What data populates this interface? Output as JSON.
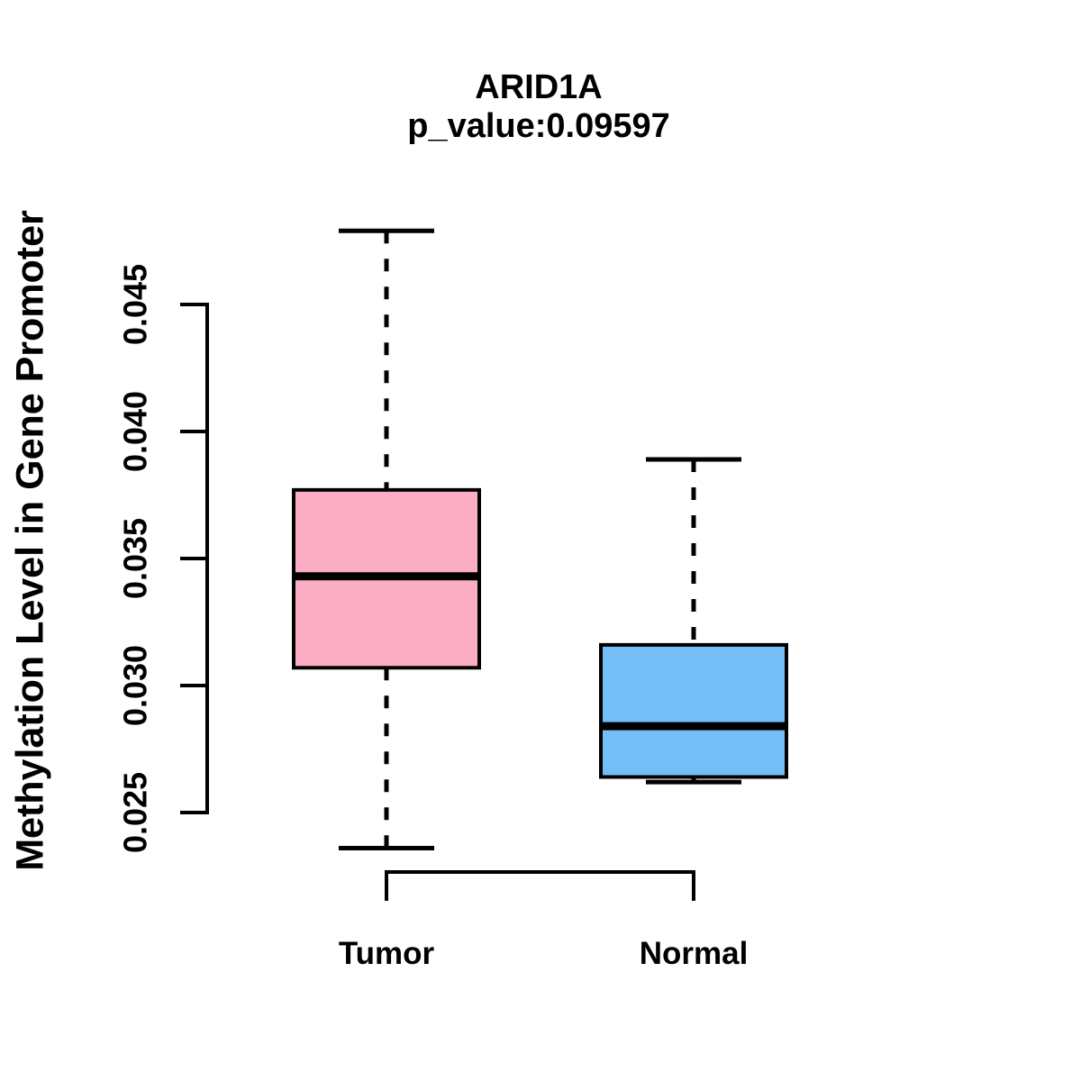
{
  "chart_data": {
    "type": "boxplot",
    "title": "ARID1A",
    "subtitle": "p_value:0.09597",
    "ylabel": "Methylation Level in Gene Promoter",
    "xlabel": "",
    "categories": [
      "Tumor",
      "Normal"
    ],
    "ylim": [
      0.025,
      0.045
    ],
    "yticks": [
      0.025,
      0.03,
      0.035,
      0.04,
      0.045
    ],
    "ytick_labels": [
      "0.025",
      "0.030",
      "0.035",
      "0.040",
      "0.045"
    ],
    "grid": "off",
    "legend": "none",
    "series": [
      {
        "name": "Tumor",
        "whisker_low": 0.0236,
        "q1": 0.0307,
        "median": 0.0343,
        "q3": 0.0377,
        "whisker_high": 0.0479,
        "fill_color": "#FBAEC3"
      },
      {
        "name": "Normal",
        "whisker_low": 0.0262,
        "q1": 0.0264,
        "median": 0.0284,
        "q3": 0.0316,
        "whisker_high": 0.0389,
        "fill_color": "#74BEF7"
      }
    ],
    "annotations": [
      {
        "type": "comparison-bracket",
        "between": [
          "Tumor",
          "Normal"
        ]
      }
    ],
    "colors": {
      "box_border": "#000000",
      "median_line": "#000000",
      "whisker": "#000000",
      "background": "#FFFFFF",
      "text": "#000000"
    }
  }
}
